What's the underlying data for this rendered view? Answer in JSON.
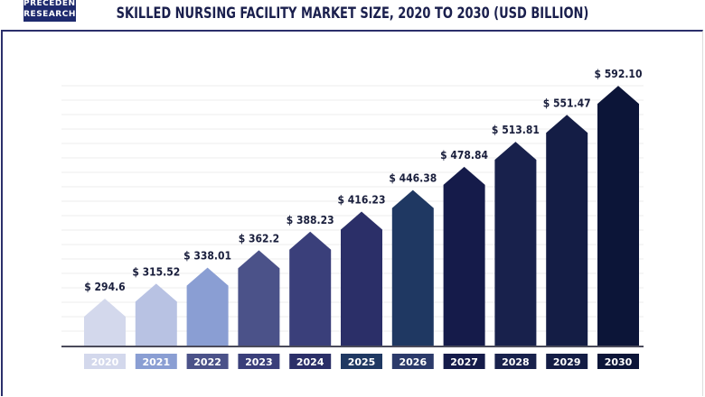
{
  "logo": {
    "line1": "PRECEDENCE",
    "line2": "RESEARCH"
  },
  "chart_data": {
    "type": "bar",
    "title": "SKILLED NURSING FACILITY MARKET SIZE, 2020 TO 2030 (USD BILLION)",
    "categories": [
      "2020",
      "2021",
      "2022",
      "2023",
      "2024",
      "2025",
      "2026",
      "2027",
      "2028",
      "2029",
      "2030"
    ],
    "values": [
      294.6,
      315.52,
      338.01,
      362.2,
      388.23,
      416.23,
      446.38,
      478.84,
      513.81,
      551.47,
      592.1
    ],
    "data_labels": [
      "$ 294.6",
      "$ 315.52",
      "$ 338.01",
      "$ 362.2",
      "$ 388.23",
      "$ 416.23",
      "$ 446.38",
      "$ 478.84",
      "$ 513.81",
      "$ 551.47",
      "$ 592.10"
    ],
    "bar_colors": [
      "#d3d8ec",
      "#b8c2e3",
      "#8a9ed3",
      "#4b5289",
      "#3a3f7a",
      "#2b2f68",
      "#1f3862",
      "#151b4a",
      "#18214c",
      "#141d45",
      "#0c1538"
    ],
    "label_colors": [
      "#d3d8ec",
      "#8a9ed3",
      "#4b5289",
      "#3a3f7a",
      "#2b2f68",
      "#1f3862",
      "#2b3a6a",
      "#151b4a",
      "#18214c",
      "#141d45",
      "#0c1538"
    ],
    "grid": true,
    "legend": "none"
  }
}
